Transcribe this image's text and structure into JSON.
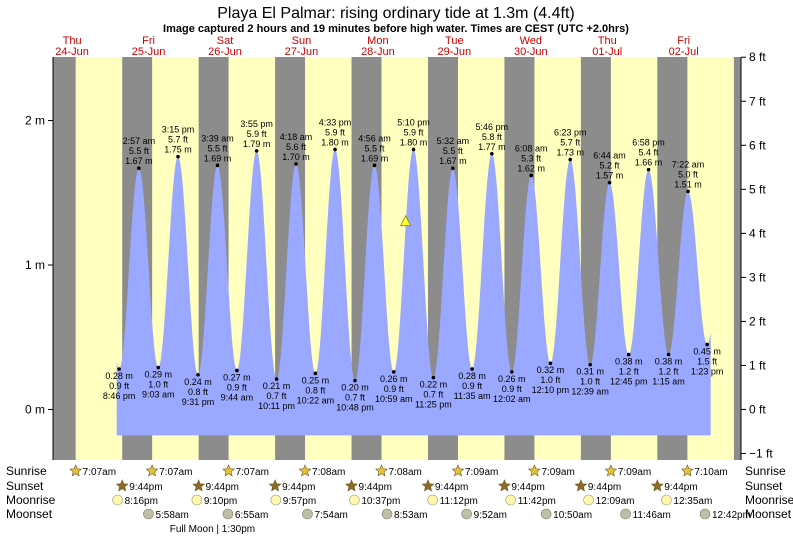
{
  "header": {
    "title": "Playa El Palmar: rising  ordinary tide at 1.3m (4.4ft)",
    "subtitle": "Image captured 2 hours and 19 minutes before high water. Times are CEST (UTC +2.0hrs)"
  },
  "days": [
    {
      "dow": "Thu",
      "date": "24-Jun"
    },
    {
      "dow": "Fri",
      "date": "25-Jun"
    },
    {
      "dow": "Sat",
      "date": "26-Jun"
    },
    {
      "dow": "Sun",
      "date": "27-Jun"
    },
    {
      "dow": "Mon",
      "date": "28-Jun"
    },
    {
      "dow": "Tue",
      "date": "29-Jun"
    },
    {
      "dow": "Wed",
      "date": "30-Jun"
    },
    {
      "dow": "Thu",
      "date": "01-Jul"
    },
    {
      "dow": "Fri",
      "date": "02-Jul"
    }
  ],
  "chart_data": {
    "type": "area",
    "start_datetime": "2021-06-24T00:00",
    "x_label_format": "time of day",
    "left_axis": {
      "unit": "m",
      "ticks": [
        {
          "v": 0,
          "label": "0 m"
        },
        {
          "v": 1,
          "label": "1 m"
        },
        {
          "v": 2,
          "label": "2 m"
        }
      ]
    },
    "right_axis": {
      "unit": "ft",
      "ticks": [
        "−1 ft",
        "0 ft",
        "1 ft",
        "2 ft",
        "3 ft",
        "4 ft",
        "5 ft",
        "6 ft",
        "7 ft",
        "8 ft"
      ]
    },
    "ylim_m": [
      -0.35,
      2.44
    ],
    "current_marker": {
      "hours": 110.72,
      "height_m": 1.3
    },
    "tides": [
      {
        "type": "low",
        "hours": 20.77,
        "m": 0.28,
        "m_label": "0.28 m",
        "ft": "0.9 ft",
        "time": "8:46 pm"
      },
      {
        "type": "high",
        "hours": 26.95,
        "m": 1.67,
        "m_label": "1.67 m",
        "ft": "5.5 ft",
        "time": "2:57 am"
      },
      {
        "type": "low",
        "hours": 33.05,
        "m": 0.29,
        "m_label": "0.29 m",
        "ft": "1.0 ft",
        "time": "9:03 am"
      },
      {
        "type": "high",
        "hours": 39.25,
        "m": 1.75,
        "m_label": "1.75 m",
        "ft": "5.7 ft",
        "time": "3:15 pm"
      },
      {
        "type": "low",
        "hours": 45.52,
        "m": 0.24,
        "m_label": "0.24 m",
        "ft": "0.8 ft",
        "time": "9:31 pm"
      },
      {
        "type": "high",
        "hours": 51.65,
        "m": 1.69,
        "m_label": "1.69 m",
        "ft": "5.5 ft",
        "time": "3:39 am"
      },
      {
        "type": "low",
        "hours": 57.73,
        "m": 0.27,
        "m_label": "0.27 m",
        "ft": "0.9 ft",
        "time": "9:44 am"
      },
      {
        "type": "high",
        "hours": 63.92,
        "m": 1.79,
        "m_label": "1.79 m",
        "ft": "5.9 ft",
        "time": "3:55 pm"
      },
      {
        "type": "low",
        "hours": 70.18,
        "m": 0.21,
        "m_label": "0.21 m",
        "ft": "0.7 ft",
        "time": "10:11 pm"
      },
      {
        "type": "high",
        "hours": 76.3,
        "m": 1.7,
        "m_label": "1.70 m",
        "ft": "5.6 ft",
        "time": "4:18 am"
      },
      {
        "type": "low",
        "hours": 82.37,
        "m": 0.25,
        "m_label": "0.25 m",
        "ft": "0.8 ft",
        "time": "10:22 am"
      },
      {
        "type": "high",
        "hours": 88.55,
        "m": 1.8,
        "m_label": "1.80 m",
        "ft": "5.9 ft",
        "time": "4:33 pm"
      },
      {
        "type": "low",
        "hours": 94.8,
        "m": 0.2,
        "m_label": "0.20 m",
        "ft": "0.7 ft",
        "time": "10:48 pm"
      },
      {
        "type": "high",
        "hours": 100.93,
        "m": 1.69,
        "m_label": "1.69 m",
        "ft": "5.5 ft",
        "time": "4:56 am"
      },
      {
        "type": "low",
        "hours": 106.98,
        "m": 0.26,
        "m_label": "0.26 m",
        "ft": "0.9 ft",
        "time": "10:59 am"
      },
      {
        "type": "high",
        "hours": 113.17,
        "m": 1.8,
        "m_label": "1.80 m",
        "ft": "5.9 ft",
        "time": "5:10 pm"
      },
      {
        "type": "low",
        "hours": 119.42,
        "m": 0.22,
        "m_label": "0.22 m",
        "ft": "0.7 ft",
        "time": "11:25 pm"
      },
      {
        "type": "high",
        "hours": 125.53,
        "m": 1.67,
        "m_label": "1.67 m",
        "ft": "5.5 ft",
        "time": "5:32 am"
      },
      {
        "type": "low",
        "hours": 131.58,
        "m": 0.28,
        "m_label": "0.28 m",
        "ft": "0.9 ft",
        "time": "11:35 am"
      },
      {
        "type": "high",
        "hours": 137.77,
        "m": 1.77,
        "m_label": "1.77 m",
        "ft": "5.8 ft",
        "time": "5:46 pm"
      },
      {
        "type": "low",
        "hours": 144.03,
        "m": 0.26,
        "m_label": "0.26 m",
        "ft": "0.9 ft",
        "time": "12:02 am"
      },
      {
        "type": "high",
        "hours": 150.13,
        "m": 1.62,
        "m_label": "1.62 m",
        "ft": "5.3 ft",
        "time": "6:08 am"
      },
      {
        "type": "low",
        "hours": 156.17,
        "m": 0.32,
        "m_label": "0.32 m",
        "ft": "1.0 ft",
        "time": "12:10 pm"
      },
      {
        "type": "high",
        "hours": 162.38,
        "m": 1.73,
        "m_label": "1.73 m",
        "ft": "5.7 ft",
        "time": "6:23 pm"
      },
      {
        "type": "low",
        "hours": 168.65,
        "m": 0.31,
        "m_label": "0.31 m",
        "ft": "1.0 ft",
        "time": "12:39 am"
      },
      {
        "type": "high",
        "hours": 174.73,
        "m": 1.57,
        "m_label": "1.57 m",
        "ft": "5.2 ft",
        "time": "6:44 am"
      },
      {
        "type": "low",
        "hours": 180.75,
        "m": 0.38,
        "m_label": "0.38 m",
        "ft": "1.2 ft",
        "time": "12:45 pm"
      },
      {
        "type": "high",
        "hours": 186.97,
        "m": 1.66,
        "m_label": "1.66 m",
        "ft": "5.4 ft",
        "time": "6:58 pm"
      },
      {
        "type": "low",
        "hours": 193.25,
        "m": 0.38,
        "m_label": "0.38 m",
        "ft": "1.2 ft",
        "time": "1:15 am"
      },
      {
        "type": "high",
        "hours": 199.37,
        "m": 1.51,
        "m_label": "1.51 m",
        "ft": "5.0 ft",
        "time": "7:22 am"
      },
      {
        "type": "low",
        "hours": 205.38,
        "m": 0.45,
        "m_label": "0.45 m",
        "ft": "1.5 ft",
        "time": "1:23 pm"
      }
    ]
  },
  "astro": {
    "labels": {
      "sunrise": "Sunrise",
      "sunset": "Sunset",
      "moonrise": "Moonrise",
      "moonset": "Moonset"
    },
    "sunrise": [
      {
        "hours": 7.12,
        "text": "7:07am"
      },
      {
        "hours": 31.12,
        "text": "7:07am"
      },
      {
        "hours": 55.12,
        "text": "7:07am"
      },
      {
        "hours": 79.13,
        "text": "7:08am"
      },
      {
        "hours": 103.13,
        "text": "7:08am"
      },
      {
        "hours": 127.15,
        "text": "7:09am"
      },
      {
        "hours": 151.15,
        "text": "7:09am"
      },
      {
        "hours": 175.15,
        "text": "7:09am"
      },
      {
        "hours": 199.17,
        "text": "7:10am"
      }
    ],
    "sunset": [
      {
        "hours": 45.73,
        "text": "9:44pm"
      },
      {
        "hours": 69.73,
        "text": "9:44pm"
      },
      {
        "hours": 93.73,
        "text": "9:44pm"
      },
      {
        "hours": 117.73,
        "text": "9:44pm"
      },
      {
        "hours": 141.73,
        "text": "9:44pm"
      },
      {
        "hours": 165.73,
        "text": "9:44pm"
      },
      {
        "hours": 189.73,
        "text": "9:44pm"
      },
      {
        "hours": 21.73,
        "text": "9:44pm"
      }
    ],
    "moonrise": [
      {
        "hours": 20.27,
        "text": "8:16pm"
      },
      {
        "hours": 45.17,
        "text": "9:10pm"
      },
      {
        "hours": 69.95,
        "text": "9:57pm"
      },
      {
        "hours": 94.62,
        "text": "10:37pm"
      },
      {
        "hours": 119.2,
        "text": "11:12pm"
      },
      {
        "hours": 143.7,
        "text": "11:42pm"
      },
      {
        "hours": 168.15,
        "text": "12:09am"
      },
      {
        "hours": 192.58,
        "text": "12:35am"
      }
    ],
    "moonset": [
      {
        "hours": 29.97,
        "text": "5:58am"
      },
      {
        "hours": 54.92,
        "text": "6:55am"
      },
      {
        "hours": 79.9,
        "text": "7:54am"
      },
      {
        "hours": 104.88,
        "text": "8:53am"
      },
      {
        "hours": 129.87,
        "text": "9:52am"
      },
      {
        "hours": 154.83,
        "text": "10:50am"
      },
      {
        "hours": 179.77,
        "text": "11:46am"
      },
      {
        "hours": 204.7,
        "text": "12:42pm"
      }
    ],
    "full_moon": {
      "hours": 37.5,
      "text": "Full Moon | 1:30pm"
    }
  },
  "colors": {
    "night": "#8c8c8c",
    "day": "#ffffc0",
    "tide_fill": "#9aa8ff",
    "day_label": "#cc0000",
    "star_sunrise": "#e6c23a",
    "star_sunset": "#8c6a2a",
    "moonrise": "#fff6b0",
    "moonset": "#bfbfa8"
  }
}
